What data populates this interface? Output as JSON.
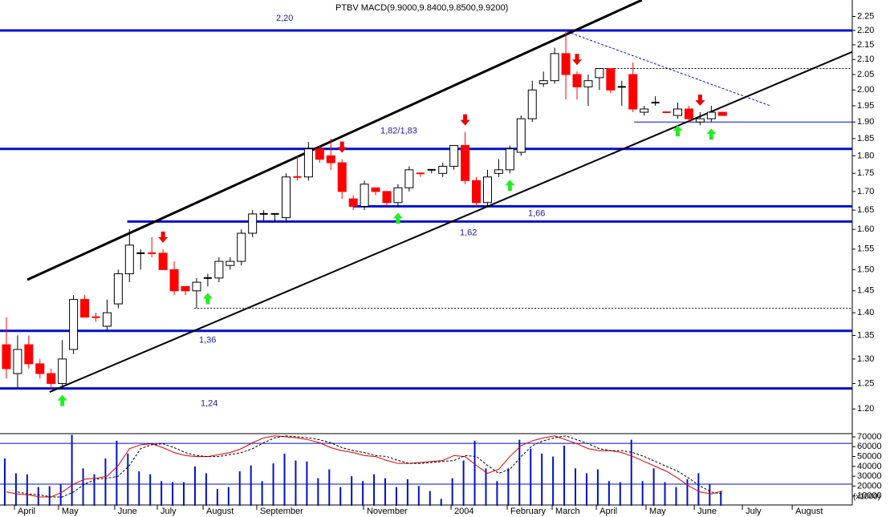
{
  "chart_data": {
    "type": "candlestick",
    "title": "PTBV MACD(9.9000,9.8400,9.8500,9.9200)",
    "log_scale": true,
    "x": [
      0,
      1,
      2,
      3,
      4,
      5,
      6,
      7,
      8,
      9,
      10,
      11,
      12,
      13,
      14,
      15,
      16,
      17,
      18,
      19,
      20,
      21,
      22,
      23,
      24,
      25,
      26,
      27,
      28,
      29,
      30,
      31,
      32,
      33,
      34,
      35,
      36,
      37,
      38,
      39,
      40,
      41,
      42,
      43,
      44,
      45,
      46,
      47,
      48,
      49,
      50,
      51,
      52,
      53,
      54,
      55,
      56,
      57,
      58,
      59,
      60,
      61,
      62,
      63,
      64
    ],
    "open": [
      1.33,
      1.27,
      1.33,
      1.29,
      1.27,
      1.25,
      1.32,
      1.43,
      1.39,
      1.37,
      1.42,
      1.49,
      1.54,
      1.54,
      1.54,
      1.5,
      1.46,
      1.45,
      1.48,
      1.48,
      1.51,
      1.52,
      1.59,
      1.64,
      1.64,
      1.63,
      1.74,
      1.74,
      1.82,
      1.8,
      1.78,
      1.68,
      1.66,
      1.71,
      1.7,
      1.67,
      1.71,
      1.75,
      1.76,
      1.75,
      1.77,
      1.83,
      1.73,
      1.67,
      1.75,
      1.76,
      1.81,
      1.91,
      2.02,
      2.03,
      2.12,
      2.05,
      2.01,
      2.04,
      2.07,
      2.01,
      2.05,
      1.93,
      1.96,
      1.93,
      1.92,
      1.94,
      1.9,
      1.91,
      1.93
    ],
    "high": [
      1.39,
      1.35,
      1.35,
      1.3,
      1.28,
      1.34,
      1.44,
      1.44,
      1.4,
      1.43,
      1.5,
      1.6,
      1.55,
      1.58,
      1.55,
      1.52,
      1.46,
      1.48,
      1.49,
      1.53,
      1.53,
      1.6,
      1.65,
      1.65,
      1.64,
      1.75,
      1.8,
      1.84,
      1.83,
      1.85,
      1.79,
      1.69,
      1.73,
      1.71,
      1.7,
      1.72,
      1.77,
      1.75,
      1.76,
      1.78,
      1.83,
      1.87,
      1.74,
      1.76,
      1.79,
      1.83,
      1.92,
      2.03,
      2.06,
      2.14,
      2.2,
      2.06,
      2.05,
      2.07,
      2.07,
      2.03,
      2.09,
      1.95,
      1.98,
      1.93,
      1.96,
      1.95,
      1.93,
      1.95,
      1.93
    ],
    "low": [
      1.26,
      1.24,
      1.28,
      1.26,
      1.24,
      1.24,
      1.31,
      1.39,
      1.38,
      1.36,
      1.41,
      1.47,
      1.5,
      1.53,
      1.5,
      1.44,
      1.44,
      1.41,
      1.46,
      1.47,
      1.5,
      1.51,
      1.58,
      1.62,
      1.62,
      1.62,
      1.73,
      1.73,
      1.78,
      1.76,
      1.68,
      1.65,
      1.65,
      1.69,
      1.66,
      1.66,
      1.7,
      1.74,
      1.75,
      1.74,
      1.76,
      1.72,
      1.66,
      1.66,
      1.74,
      1.75,
      1.8,
      1.9,
      2.01,
      2.02,
      1.97,
      1.97,
      1.95,
      2.0,
      1.99,
      1.95,
      1.93,
      1.92,
      1.95,
      1.93,
      1.91,
      1.9,
      1.89,
      1.9,
      1.92
    ],
    "close": [
      1.28,
      1.32,
      1.29,
      1.27,
      1.25,
      1.3,
      1.43,
      1.39,
      1.39,
      1.4,
      1.49,
      1.56,
      1.54,
      1.54,
      1.5,
      1.45,
      1.45,
      1.47,
      1.48,
      1.52,
      1.52,
      1.59,
      1.64,
      1.64,
      1.64,
      1.74,
      1.74,
      1.82,
      1.79,
      1.78,
      1.7,
      1.66,
      1.72,
      1.7,
      1.67,
      1.71,
      1.76,
      1.75,
      1.76,
      1.77,
      1.83,
      1.73,
      1.67,
      1.74,
      1.76,
      1.82,
      1.91,
      2.0,
      2.03,
      2.12,
      2.05,
      2.01,
      2.03,
      2.07,
      2.0,
      2.01,
      1.94,
      1.94,
      1.96,
      1.93,
      1.94,
      1.91,
      1.91,
      1.93,
      1.92
    ],
    "colors": [
      "#f00",
      "#fff",
      "#f00",
      "#f00",
      "#f00",
      "#fff",
      "#fff",
      "#f00",
      "#f00",
      "#fff",
      "#fff",
      "#fff",
      "#000",
      "#f00",
      "#f00",
      "#f00",
      "#f00",
      "#fff",
      "#000",
      "#fff",
      "#fff",
      "#fff",
      "#fff",
      "#fff",
      "#fff",
      "#fff",
      "#f00",
      "#fff",
      "#f00",
      "#f00",
      "#f00",
      "#f00",
      "#fff",
      "#f00",
      "#f00",
      "#fff",
      "#fff",
      "#f00",
      "#000",
      "#fff",
      "#fff",
      "#f00",
      "#f00",
      "#fff",
      "#fff",
      "#fff",
      "#fff",
      "#fff",
      "#fff",
      "#fff",
      "#f00",
      "#f00",
      "#fff",
      "#fff",
      "#f00",
      "#fff",
      "#f00",
      "#fff",
      "#fff",
      "#f00",
      "#fff",
      "#f00",
      "#fff",
      "#fff",
      "#f00"
    ],
    "xlim": [
      -0.57,
      75.6
    ],
    "ylim": [
      1.155,
      2.31
    ],
    "yticks": [
      {
        "value": 1.2,
        "label": "1.20"
      },
      1.25,
      {
        "value": 1.3,
        "label": "1.30"
      },
      1.35,
      {
        "value": 1.4,
        "label": "1.40"
      },
      1.45,
      {
        "value": 1.5,
        "label": "1.50"
      },
      1.55,
      {
        "value": 1.6,
        "label": "1.60"
      },
      1.65,
      {
        "value": 1.7,
        "label": "1.70"
      },
      1.75,
      {
        "value": 1.8,
        "label": "1.80"
      },
      1.85,
      {
        "value": 1.9,
        "label": "1.90"
      },
      1.95,
      {
        "value": 2.0,
        "label": "2.00"
      },
      2.05,
      {
        "value": 2.1,
        "label": "2.10"
      },
      2.15,
      {
        "value": 2.2,
        "label": "2.20"
      },
      2.25
    ],
    "xticks": [
      {
        "value": 0.72,
        "label": "April"
      },
      {
        "value": 4.66,
        "label": "May"
      },
      {
        "value": 9.68,
        "label": "June"
      },
      {
        "value": 13.49,
        "label": "July"
      },
      {
        "value": 17.58,
        "label": "August"
      },
      {
        "value": 22.38,
        "label": "September"
      },
      {
        "value": 31.92,
        "label": "November"
      },
      {
        "value": 39.74,
        "label": "2004"
      },
      {
        "value": 44.76,
        "label": "February"
      },
      {
        "value": 48.78,
        "label": "March"
      },
      {
        "value": 52.73,
        "label": "April"
      },
      {
        "value": 57.17,
        "label": "May"
      },
      {
        "value": 61.48,
        "label": "June"
      },
      {
        "value": 65.78,
        "label": "July"
      },
      {
        "value": 70.23,
        "label": "August"
      }
    ],
    "levels": [
      {
        "value": 2.2,
        "label": "2,20",
        "start": -0.57,
        "color": "#0010c8"
      },
      {
        "value": 1.82,
        "label": "1,82/1,83",
        "start": -0.57,
        "color": "#0010c8"
      },
      {
        "value": 1.66,
        "label": "1,66",
        "start": 31,
        "color": "#0010c8"
      },
      {
        "value": 1.62,
        "label": "1,62",
        "start": 10.8,
        "color": "#0010c8"
      },
      {
        "value": 1.36,
        "label": "1,36",
        "start": -0.57,
        "color": "#0010c8"
      },
      {
        "value": 1.24,
        "label": "1,24",
        "start": -0.57,
        "color": "#0010c8"
      }
    ],
    "thin_levels": [
      {
        "value": 1.9,
        "start": 56.1,
        "color": "#0010c8",
        "dashed": false
      },
      {
        "value": 1.41,
        "start": 16.8,
        "color": "#000000",
        "dashed": true
      },
      {
        "value": 2.07,
        "start": 52.9,
        "color": "#000000",
        "dashed": true
      }
    ],
    "trend_lines": [
      {
        "from": [
          1.87,
          1.476
        ],
        "to": [
          56.8,
          2.31
        ],
        "color": "#000000",
        "width": 3,
        "dashed": false
      },
      {
        "from": [
          3.87,
          1.233
        ],
        "to": [
          75.6,
          2.126
        ],
        "color": "#000000",
        "width": 2,
        "dashed": false
      },
      {
        "from": [
          49.8,
          2.2
        ],
        "to": [
          68.2,
          1.951
        ],
        "color": "#0010c8",
        "width": 1,
        "dashed": true
      }
    ],
    "up_arrows": [
      5,
      18,
      35,
      45,
      60,
      63
    ],
    "down_arrows": [
      14,
      30,
      41,
      51,
      62
    ],
    "volume": {
      "values": [
        48000,
        33000,
        32000,
        19000,
        20000,
        22000,
        72000,
        38000,
        32000,
        48000,
        66000,
        53000,
        35000,
        32000,
        25000,
        24000,
        24000,
        40000,
        33000,
        17000,
        19000,
        35000,
        41000,
        25000,
        43000,
        53000,
        46000,
        45000,
        28000,
        37000,
        19000,
        30000,
        25000,
        32000,
        28000,
        19000,
        27000,
        20000,
        15000,
        7000,
        28000,
        46000,
        66000,
        38000,
        25000,
        38000,
        67000,
        58000,
        53000,
        50000,
        61000,
        38000,
        33000,
        37000,
        25000,
        24000,
        67000,
        25000,
        38000,
        24000,
        19000,
        27000,
        33000,
        22000,
        15000
      ],
      "color": "#0010c8",
      "ylim": [
        0,
        70000
      ],
      "yticks": [
        10000,
        20000,
        30000,
        40000,
        50000,
        60000,
        70000
      ],
      "unit_label": "(x1000)",
      "bands": [
        63400,
        22000
      ],
      "series": [
        {
          "color": "#e00000",
          "dashed": false,
          "values": [
            14000,
            12000,
            11000,
            9000,
            9000,
            14000,
            22000,
            27000,
            28000,
            30000,
            41000,
            58000,
            62000,
            63000,
            59000,
            54000,
            51000,
            50000,
            50000,
            52000,
            54000,
            58000,
            64000,
            69000,
            71000,
            70000,
            69000,
            67000,
            64000,
            59000,
            56000,
            54000,
            51000,
            50000,
            46000,
            43000,
            43000,
            44000,
            45000,
            46000,
            51000,
            50000,
            41000,
            33000,
            37000,
            50000,
            61000,
            66000,
            69000,
            71000,
            67000,
            63000,
            58000,
            56000,
            56000,
            54000,
            50000,
            45000,
            40000,
            35000,
            28000,
            20000,
            14000,
            12000,
            15000
          ]
        },
        {
          "color": "#000000",
          "dashed": true,
          "values": [
            null,
            14000,
            12000,
            11000,
            9000,
            9000,
            14000,
            22000,
            27000,
            28000,
            30000,
            41000,
            58000,
            62000,
            63000,
            59000,
            54000,
            51000,
            50000,
            50000,
            52000,
            54000,
            58000,
            64000,
            69000,
            71000,
            70000,
            69000,
            67000,
            64000,
            59000,
            56000,
            54000,
            51000,
            50000,
            46000,
            43000,
            43000,
            44000,
            45000,
            46000,
            51000,
            50000,
            41000,
            33000,
            37000,
            50000,
            61000,
            66000,
            69000,
            71000,
            67000,
            63000,
            58000,
            56000,
            56000,
            54000,
            50000,
            45000,
            40000,
            35000,
            28000,
            20000,
            14000,
            12000
          ]
        }
      ]
    }
  }
}
